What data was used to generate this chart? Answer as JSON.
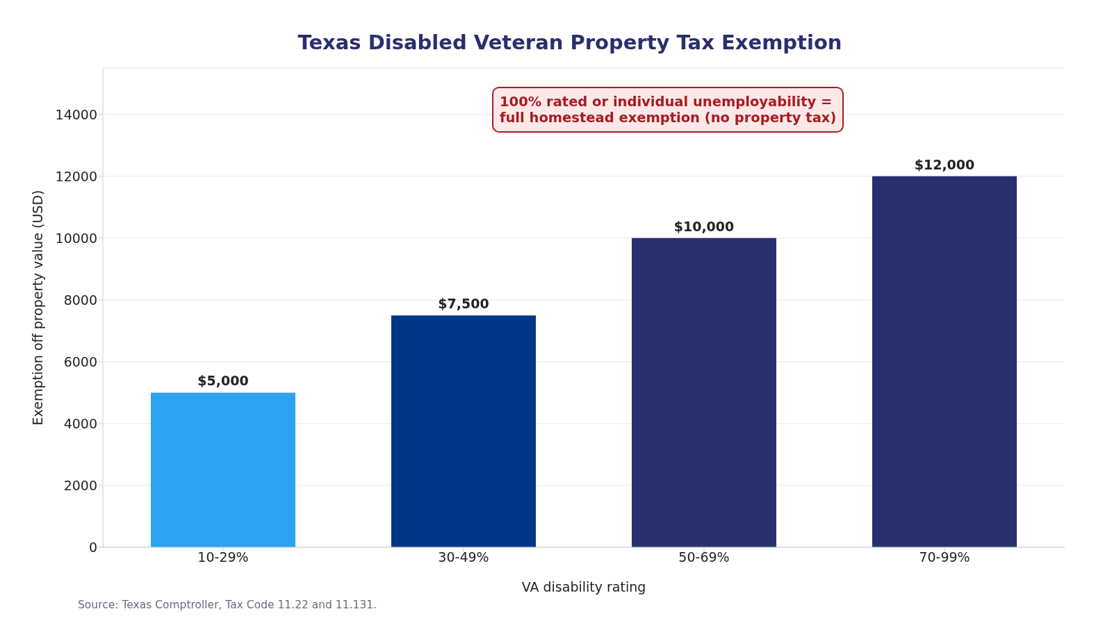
{
  "chart_data": {
    "type": "bar",
    "title": "Texas Disabled Veteran Property Tax Exemption",
    "xlabel": "VA disability rating",
    "ylabel": "Exemption off property value (USD)",
    "categories": [
      "10-29%",
      "30-49%",
      "50-69%",
      "70-99%"
    ],
    "values": [
      5000,
      7500,
      10000,
      12000
    ],
    "colors": [
      "#2ea3f2",
      "#003686",
      "#2a2f6d",
      "#2a2f6d"
    ],
    "value_labels": [
      "$5,000",
      "$7,500",
      "$10,000",
      "$12,000"
    ],
    "ylim": [
      0,
      15500
    ],
    "yticks": [
      0,
      2000,
      4000,
      6000,
      8000,
      10000,
      12000,
      14000
    ],
    "grid": "y",
    "annotations": [
      "100% rated or individual unemployability =\nfull homestead exemption (no property tax)",
      "Source: Texas Comptroller, Tax Code 11.22 and 11.131."
    ]
  }
}
